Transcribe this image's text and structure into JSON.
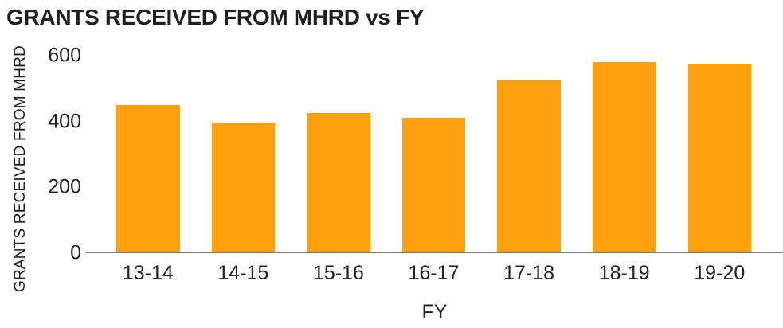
{
  "title": "GRANTS RECEIVED FROM MHRD vs FY",
  "chart_data": {
    "type": "bar",
    "title": "GRANTS RECEIVED FROM MHRD vs FY",
    "categories": [
      "13-14",
      "14-15",
      "15-16",
      "16-17",
      "17-18",
      "18-19",
      "19-20"
    ],
    "values": [
      450,
      395,
      425,
      410,
      525,
      580,
      575
    ],
    "xlabel": "FY",
    "ylabel": "GRANTS RECEIVED FROM MHRD",
    "ylim": [
      0,
      600
    ],
    "yticks": [
      0,
      200,
      400,
      600
    ],
    "grid": false,
    "legend_position": "none",
    "bar_color": "#FFA10E",
    "axis_line_color": "#7a7a7a",
    "text_color": "#222222"
  }
}
